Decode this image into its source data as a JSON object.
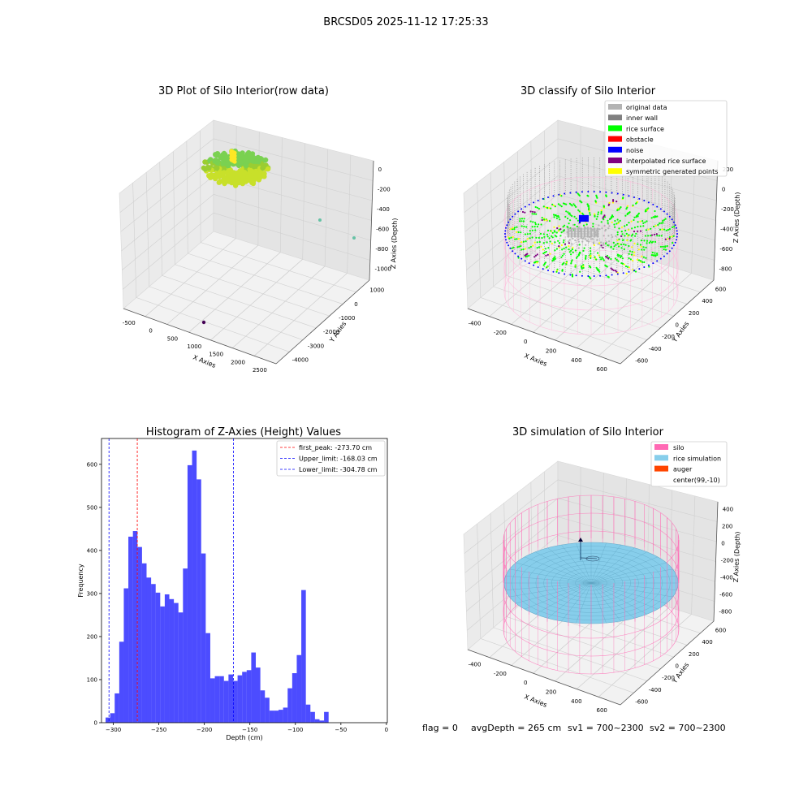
{
  "suptitle": "BRCSD05 2025-11-12 17:25:33",
  "panel1": {
    "title": "3D Plot of Silo Interior(row data)",
    "xlabel": "X Axies",
    "ylabel": "Y Axies",
    "zlabel": "Z Axies (Depth)",
    "xticks": [
      "-500",
      "0",
      "500",
      "1000",
      "1500",
      "2000",
      "2500"
    ],
    "yticks": [
      "1000",
      "0",
      "-1000",
      "-2000",
      "-3000",
      "-4000"
    ],
    "zticks": [
      "0",
      "-200",
      "-400",
      "-600",
      "-800",
      "-1000"
    ]
  },
  "panel2": {
    "title": "3D classify of Silo Interior",
    "xlabel": "X Axies",
    "ylabel": "Y Axies",
    "zlabel": "Z Axies (Depth)",
    "xticks": [
      "-400",
      "-200",
      "0",
      "200",
      "400",
      "600"
    ],
    "yticks": [
      "600",
      "400",
      "200",
      "0",
      "-200",
      "-400",
      "-600"
    ],
    "zticks": [
      "200",
      "0",
      "-200",
      "-400",
      "-600",
      "-800"
    ],
    "legend": [
      {
        "label": "original data",
        "color": "#b3b3b3"
      },
      {
        "label": "inner wall",
        "color": "#808080"
      },
      {
        "label": "rice surface",
        "color": "#00ff00"
      },
      {
        "label": "obstacle",
        "color": "#ff0000"
      },
      {
        "label": "noise",
        "color": "#0000ff"
      },
      {
        "label": "interpolated rice surface",
        "color": "#800080"
      },
      {
        "label": "symmetric generated points",
        "color": "#ffff00"
      }
    ]
  },
  "panel4": {
    "title": "3D simulation of Silo Interior",
    "xlabel": "X Axies",
    "ylabel": "Y Axies",
    "zlabel": "Z Axies (Depth)",
    "xticks": [
      "-400",
      "-200",
      "0",
      "200",
      "400",
      "600"
    ],
    "yticks": [
      "600",
      "400",
      "200",
      "0",
      "-200",
      "-400",
      "-600"
    ],
    "zticks": [
      "400",
      "200",
      "0",
      "-200",
      "-400",
      "-600",
      "-800"
    ],
    "legend": [
      {
        "label": "silo",
        "color": "#ff69b4"
      },
      {
        "label": "rice simulation",
        "color": "#87ceeb"
      },
      {
        "label": "auger",
        "color": "#ff4500"
      },
      {
        "label": "center(99,-10)",
        "color": ""
      }
    ]
  },
  "footer": {
    "flag": "flag = 0",
    "avg": "avgDepth = 265 cm",
    "sv1": "sv1 = 700~2300",
    "sv2": "sv2 = 700~2300"
  },
  "chart_data": [
    {
      "type": "scatter",
      "title": "3D Plot of Silo Interior(row data)",
      "xlabel": "X Axies",
      "ylabel": "Y Axies",
      "zlabel": "Z Axies (Depth)",
      "xlim": [
        -700,
        2600
      ],
      "ylim": [
        -4200,
        1300
      ],
      "zlim": [
        -1100,
        50
      ],
      "colors": {
        "cluster": "#9acd32",
        "outliers": [
          "#66c2a5",
          "#440154"
        ]
      }
    },
    {
      "type": "scatter",
      "title": "3D classify of Silo Interior",
      "xlabel": "X Axies",
      "ylabel": "Y Axies",
      "zlabel": "Z Axies (Depth)",
      "xlim": [
        -500,
        700
      ],
      "ylim": [
        -700,
        700
      ],
      "zlim": [
        -900,
        300
      ],
      "series": [
        {
          "name": "original data"
        },
        {
          "name": "inner wall"
        },
        {
          "name": "rice surface"
        },
        {
          "name": "obstacle"
        },
        {
          "name": "noise"
        },
        {
          "name": "interpolated rice surface"
        },
        {
          "name": "symmetric generated points"
        }
      ]
    },
    {
      "type": "bar",
      "title": "Histogram of Z-Axies (Height) Values",
      "xlabel": "Depth (cm)",
      "ylabel": "Frequency",
      "xlim": [
        -313,
        1
      ],
      "ylim": [
        0,
        660
      ],
      "xticks": [
        -300,
        -250,
        -200,
        -150,
        -100,
        -50,
        0
      ],
      "yticks": [
        0,
        100,
        200,
        300,
        400,
        500,
        600
      ],
      "bin_start": -308.5,
      "bin_width": 5,
      "values": [
        12,
        22,
        68,
        188,
        312,
        432,
        445,
        408,
        370,
        337,
        322,
        302,
        270,
        298,
        287,
        278,
        256,
        358,
        598,
        632,
        565,
        393,
        208,
        103,
        108,
        108,
        97,
        112,
        97,
        110,
        118,
        122,
        163,
        128,
        75,
        58,
        28,
        28,
        30,
        35,
        80,
        115,
        157,
        308,
        42,
        25,
        8,
        5,
        25
      ],
      "color": "#0000ff",
      "vlines": [
        {
          "label": "first_peak: -273.70 cm",
          "value": -273.7,
          "color": "#ff0000"
        },
        {
          "label": "Upper_limit: -168.03 cm",
          "value": -168.03,
          "color": "#0000ff"
        },
        {
          "label": "Lower_limit: -304.78 cm",
          "value": -304.78,
          "color": "#0000ff"
        }
      ]
    },
    {
      "type": "scatter",
      "title": "3D simulation of Silo Interior",
      "xlabel": "X Axies",
      "ylabel": "Y Axies",
      "zlabel": "Z Axies (Depth)",
      "xlim": [
        -500,
        700
      ],
      "ylim": [
        -700,
        700
      ],
      "zlim": [
        -900,
        450
      ],
      "series": [
        {
          "name": "silo"
        },
        {
          "name": "rice simulation"
        },
        {
          "name": "auger"
        }
      ]
    }
  ]
}
